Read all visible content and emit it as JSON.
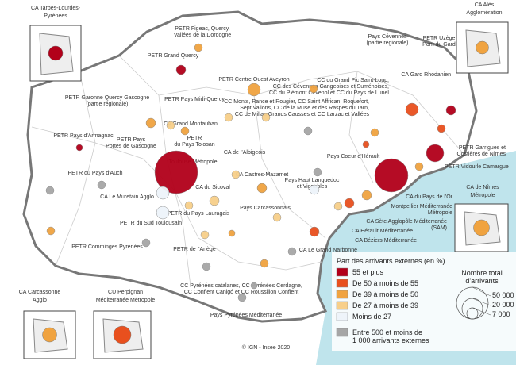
{
  "insets": [
    [
      "CA Tarbes-Lourdes-",
      "Pyrénées"
    ],
    [
      "CA Alès",
      "Agglomération"
    ],
    [
      "CA de Nîmes",
      "Métropole"
    ],
    [
      "CA Carcassonne",
      "Agglo"
    ],
    [
      "CU Perpignan",
      "Méditerranée Métropole"
    ]
  ],
  "labels": [
    [
      "PETR Figeac, Quercy,",
      "Vallées de la Dordogne"
    ],
    [
      "PETR Grand Quercy"
    ],
    [
      "Pays Cévennes",
      "(partie régionale)"
    ],
    [
      "PETR Uzège",
      "Pont du Gard"
    ],
    [
      "CA Gard Rhodanien"
    ],
    [
      "PETR Centre Ouest Aveyron"
    ],
    [
      "PETR Garonne Quercy Gascogne",
      "(partie régionale)"
    ],
    [
      "PETR Pays Midi-Quercy"
    ],
    [
      "CC du Grand Pic Saint-Loup,",
      "CC des Cévennes Gangeoises et Suménoises,",
      "CC du Piémont Cévenol et CC du Pays de Lunel"
    ],
    [
      "CC Monts, Rance et Rougier, CC Saint Affrican, Roquefort,",
      "Sept Vallons, CC de la Muse et des Raspes du Tarn,",
      "CC de Millau Grands Causses et CC Larzac et Vallées"
    ],
    [
      "CA Grand Montauban"
    ],
    [
      "PETR Pays d'Armagnac"
    ],
    [
      "PETR Pays",
      "Portes de Gascogne"
    ],
    [
      "PETR",
      "du Pays Tolosan"
    ],
    [
      "CA de l'Albigeois"
    ],
    [
      "Pays Coeur d'Hérault"
    ],
    [
      "PETR Garrigues et",
      "Costières de Nîmes"
    ],
    [
      "PETR Vidourle Camargue"
    ],
    [
      "Toulouse Métropole"
    ],
    [
      "PETR du Pays d'Auch"
    ],
    [
      "Pays Haut Languedoc",
      "et Vignobles"
    ],
    [
      "CA Castres-Mazamet"
    ],
    [
      "CA du Sicoval"
    ],
    [
      "CA Le Muretain Agglo"
    ],
    [
      "CA du Pays de l'Or"
    ],
    [
      "Montpellier Méditerranée",
      "Métropole"
    ],
    [
      "PETR du Pays Lauragais"
    ],
    [
      "Pays Carcassonnais"
    ],
    [
      "CA Sète Agglopôle Méditerranée",
      "(SAM)"
    ],
    [
      "PETR du Sud Toulousain"
    ],
    [
      "CA Hérault Méditerranée"
    ],
    [
      "CA Béziers Méditerranée"
    ],
    [
      "PETR Comminges Pyrénées"
    ],
    [
      "PETR de l'Ariège"
    ],
    [
      "CA Le Grand Narbonne"
    ],
    [
      "CC Pyrénées catalanes, CC Pyrénées Cerdagne,",
      "CC Conflent Canigó et CC Roussillon Conflent"
    ],
    [
      "Pays Pyrénées Méditerranée"
    ]
  ],
  "credit": "© IGN - Insee 2020",
  "legend": {
    "title": "Part des arrivants externes (en %)",
    "items": [
      "55 et plus",
      "De 50 à moins de 55",
      "De 39 à moins de 50",
      "De 27 à moins de 39",
      "Moins de 27"
    ],
    "small": [
      "Entre 500 et moins de",
      "1 000 arrivants externes"
    ],
    "size_title": [
      "Nombre total",
      "d'arrivants"
    ],
    "sizes": [
      "50 000",
      "20 000",
      "7 000"
    ]
  }
}
